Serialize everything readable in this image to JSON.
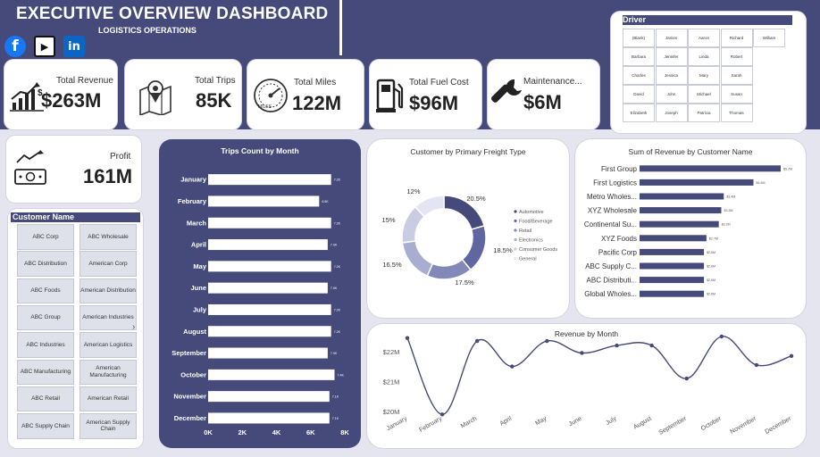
{
  "header": {
    "title": "EXECUTIVE OVERVIEW DASHBOARD",
    "subtitle": "LOGISTICS OPERATIONS"
  },
  "social": {
    "facebook": "f",
    "youtube": "▶",
    "linkedin": "in"
  },
  "kpis": {
    "revenue": {
      "label": "Total Revenue",
      "value": "$263M"
    },
    "trips": {
      "label": "Total Trips",
      "value": "85K"
    },
    "miles": {
      "label": "Total Miles",
      "value": "122M"
    },
    "fuel": {
      "label": "Total Fuel Cost",
      "value": "$96M"
    },
    "maintenance": {
      "label": "Maintenance...",
      "value": "$6M"
    },
    "profit": {
      "label": "Profit",
      "value": "161M"
    }
  },
  "driver_slicer": {
    "title": "Driver",
    "names": [
      [
        "(Blank)",
        "James",
        "Aaron",
        "Richard",
        "William"
      ],
      [
        "Barbara",
        "Jennifer",
        "Linda",
        "Robert"
      ],
      [
        "Charles",
        "Jessica",
        "Mary",
        "Sarah"
      ],
      [
        "David",
        "John",
        "Michael",
        "Susan"
      ],
      [
        "Elizabeth",
        "Joseph",
        "Patricia",
        "Thomas"
      ]
    ]
  },
  "customer_slicer": {
    "title": "Customer Name",
    "names": [
      [
        "ABC Corp",
        "ABC Wholesale"
      ],
      [
        "ABC Distribution",
        "American Corp"
      ],
      [
        "ABC Foods",
        "American Distribution"
      ],
      [
        "ABC Group",
        "American Industries"
      ],
      [
        "ABC Industries",
        "American Logistics"
      ],
      [
        "ABC Manufacturing",
        "American Manufacturing"
      ],
      [
        "ABC Retail",
        "American Retail"
      ],
      [
        "ABC Supply Chain",
        "American Supply Chain"
      ]
    ],
    "scroll_arrow": "›"
  },
  "chart_data": [
    {
      "id": "trips",
      "type": "bar",
      "orientation": "horizontal",
      "title": "Trips Count by Month",
      "categories": [
        "January",
        "February",
        "March",
        "April",
        "May",
        "June",
        "July",
        "August",
        "September",
        "October",
        "November",
        "December"
      ],
      "values": [
        7200,
        6500,
        7200,
        7000,
        7200,
        7000,
        7200,
        7200,
        7000,
        7400,
        7100,
        7100
      ],
      "data_labels": [
        "7.2K",
        "6.5K",
        "7.2K",
        "7.0K",
        "7.2K",
        "7.0K",
        "7.2K",
        "7.2K",
        "7.0K",
        "7.4K",
        "7.1K",
        "7.1K"
      ],
      "xlim": [
        0,
        8000
      ],
      "xticks": [
        "0K",
        "2K",
        "4K",
        "6K",
        "8K"
      ],
      "bar_color": "#ffffff"
    },
    {
      "id": "freight",
      "type": "pie",
      "donut": true,
      "title": "Customer by Primary Freight Type",
      "categories": [
        "Automotive",
        "Food/Beverage",
        "Retail",
        "Electronics",
        "Consumer Goods",
        "General"
      ],
      "values": [
        20.5,
        18.5,
        17.5,
        16.5,
        15,
        12
      ],
      "data_labels": [
        "20.5%",
        "18.5%",
        "17.5%",
        "16.5%",
        "15%",
        "12%"
      ],
      "colors": [
        "#454a7a",
        "#6066a0",
        "#8288b8",
        "#a9adcf",
        "#c9cce3",
        "#e3e5f2"
      ],
      "legend": "right"
    },
    {
      "id": "customer_revenue",
      "type": "bar",
      "orientation": "horizontal",
      "title": "Sum of Revenue by Customer Name",
      "categories": [
        "First Group",
        "First Logistics",
        "Metro Wholes...",
        "XYZ Wholesale",
        "Continental Su...",
        "XYZ Foods",
        "Pacific Corp",
        "ABC Supply C...",
        "ABC Distributi...",
        "Global Wholes..."
      ],
      "values": [
        5.7,
        4.6,
        3.4,
        3.3,
        3.2,
        2.7,
        2.6,
        2.6,
        2.6,
        2.6
      ],
      "data_labels": [
        "$5.7M",
        "$4.6M",
        "$3.4M",
        "$3.3M",
        "$3.2M",
        "$2.7M",
        "$2.6M",
        "$2.6M",
        "$2.6M",
        "$2.6M"
      ],
      "bar_color": "#454a7a"
    },
    {
      "id": "revenue_month",
      "type": "line",
      "title": "Revenue by Month",
      "categories": [
        "January",
        "February",
        "March",
        "April",
        "May",
        "June",
        "July",
        "August",
        "September",
        "October",
        "November",
        "December"
      ],
      "values": [
        22.45,
        19.9,
        22.35,
        21.5,
        22.35,
        21.95,
        22.2,
        22.2,
        21.1,
        22.5,
        21.55,
        21.85
      ],
      "unit": "$M",
      "ylim": [
        20,
        22.5
      ],
      "yticks": [
        {
          "v": 20,
          "label": "$20M"
        },
        {
          "v": 21,
          "label": "$21M"
        },
        {
          "v": 22,
          "label": "$22M"
        }
      ],
      "line_color": "#454a7a"
    }
  ]
}
